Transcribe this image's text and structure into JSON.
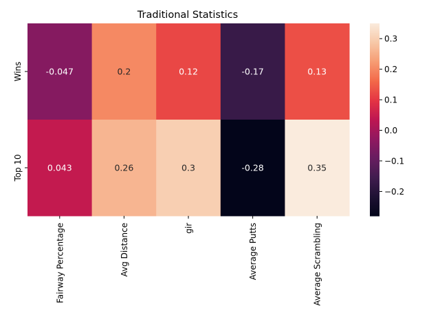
{
  "chart_data": {
    "type": "heatmap",
    "title": "Traditional Statistics",
    "xlabel": "",
    "ylabel": "",
    "columns": [
      "Fairway Percentage",
      "Avg Distance",
      "gir",
      "Average Putts",
      "Average Scrambling"
    ],
    "rows": [
      "Wins",
      "Top 10"
    ],
    "values": [
      [
        -0.047,
        0.2,
        0.12,
        -0.17,
        0.13
      ],
      [
        0.043,
        0.26,
        0.3,
        -0.28,
        0.35
      ]
    ],
    "cell_labels": [
      [
        "-0.047",
        "0.2",
        "0.12",
        "-0.17",
        "0.13"
      ],
      [
        "0.043",
        "0.26",
        "0.3",
        "-0.28",
        "0.35"
      ]
    ],
    "colorscale": "rocket",
    "vmin": -0.28,
    "vmax": 0.35,
    "colorbar_ticks": [
      -0.2,
      -0.1,
      0.0,
      0.1,
      0.2,
      0.3
    ],
    "colorbar_tick_labels": [
      "−0.2",
      "−0.1",
      "0.0",
      "0.1",
      "0.2",
      "0.3"
    ]
  }
}
